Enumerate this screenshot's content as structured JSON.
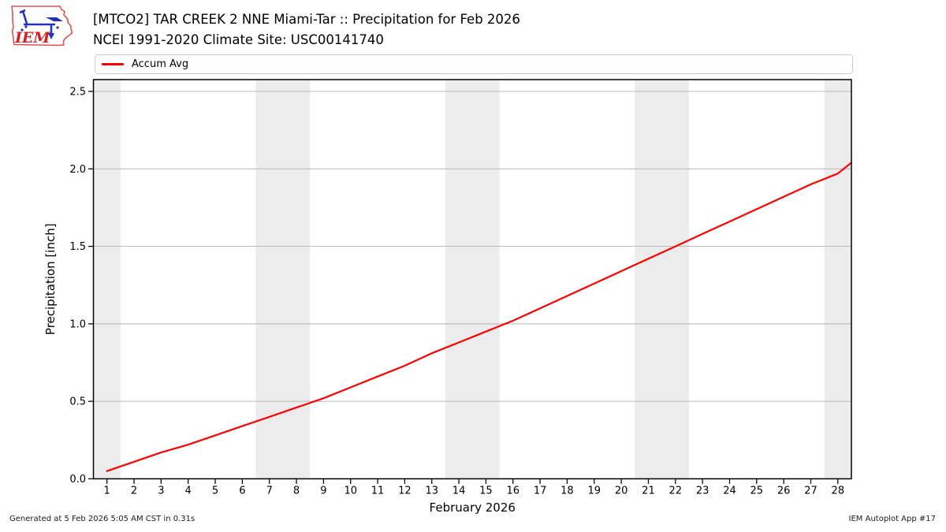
{
  "header": {
    "title_line1": "[MTCO2] TAR CREEK 2 NNE Miami-Tar :: Precipitation for Feb 2026",
    "title_line2": "NCEI 1991-2020 Climate Site: USC00141740"
  },
  "logo": {
    "text": "IEM"
  },
  "legend": {
    "items": [
      {
        "label": "Accum Avg",
        "color": "#ff0000"
      }
    ]
  },
  "chart_data": {
    "type": "line",
    "title": "[MTCO2] TAR CREEK 2 NNE Miami-Tar :: Precipitation for Feb 2026",
    "subtitle": "NCEI 1991-2020 Climate Site: USC00141740",
    "xlabel": "February 2026",
    "ylabel": "Precipitation [inch]",
    "xlim": [
      0.5,
      28.5
    ],
    "ylim": [
      0,
      2.576
    ],
    "grid": "horizontal",
    "x_ticks": [
      1,
      2,
      3,
      4,
      5,
      6,
      7,
      8,
      9,
      10,
      11,
      12,
      13,
      14,
      15,
      16,
      17,
      18,
      19,
      20,
      21,
      22,
      23,
      24,
      25,
      26,
      27,
      28
    ],
    "y_ticks": [
      0.0,
      0.5,
      1.0,
      1.5,
      2.0,
      2.5
    ],
    "y_tick_labels": [
      "0.0",
      "0.5",
      "1.0",
      "1.5",
      "2.0",
      "2.5"
    ],
    "weekend_bands": [
      [
        0.5,
        1.5
      ],
      [
        6.5,
        8.5
      ],
      [
        13.5,
        15.5
      ],
      [
        20.5,
        22.5
      ],
      [
        27.5,
        28.5
      ]
    ],
    "band_color": "#ececec",
    "grid_color": "#b3b3b3",
    "spine_color": "#000000",
    "legend_position": "top",
    "series": [
      {
        "name": "Accum Avg",
        "color": "#ff0000",
        "x": [
          1,
          2,
          3,
          4,
          5,
          6,
          7,
          8,
          9,
          10,
          11,
          12,
          13,
          14,
          15,
          16,
          17,
          18,
          19,
          20,
          21,
          22,
          23,
          24,
          25,
          26,
          27,
          28,
          28.5
        ],
        "y": [
          0.05,
          0.11,
          0.17,
          0.22,
          0.28,
          0.34,
          0.4,
          0.46,
          0.52,
          0.59,
          0.66,
          0.73,
          0.81,
          0.88,
          0.95,
          1.02,
          1.1,
          1.18,
          1.26,
          1.34,
          1.42,
          1.5,
          1.58,
          1.66,
          1.74,
          1.82,
          1.9,
          1.97,
          2.04
        ]
      }
    ]
  },
  "footer": {
    "generated": "Generated at 5 Feb 2026 5:05 AM CST in 0.31s",
    "app": "IEM Autoplot App #17"
  }
}
